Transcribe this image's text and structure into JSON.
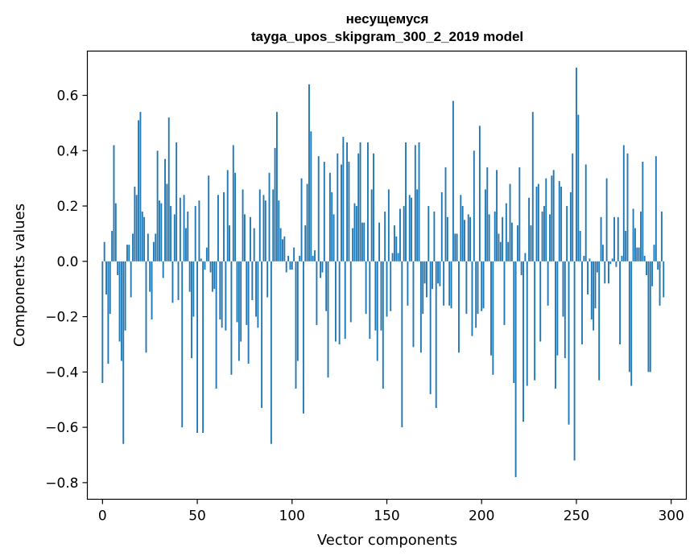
{
  "chart_data": {
    "type": "bar",
    "title": "несущемуся",
    "subtitle": "tayga_upos_skipgram_300_2_2019 model",
    "xlabel": "Vector components",
    "ylabel": "Components values",
    "xlim": [
      -8,
      308
    ],
    "ylim": [
      -0.86,
      0.76
    ],
    "xticks": [
      0,
      50,
      100,
      150,
      200,
      250,
      300
    ],
    "yticks": [
      -0.8,
      -0.6,
      -0.4,
      -0.2,
      0.0,
      0.2,
      0.4,
      0.6
    ],
    "ytick_labels": [
      "−0.8",
      "−0.6",
      "−0.4",
      "−0.2",
      "0.0",
      "0.2",
      "0.4",
      "0.6"
    ],
    "bar_color": "#1f77b4",
    "values": [
      -0.44,
      0.07,
      -0.12,
      -0.37,
      -0.19,
      0.11,
      0.42,
      0.21,
      -0.05,
      -0.29,
      -0.36,
      -0.66,
      -0.25,
      0.06,
      0.06,
      -0.13,
      0.1,
      0.27,
      0.24,
      0.51,
      0.54,
      0.18,
      0.16,
      -0.33,
      0.1,
      -0.11,
      -0.21,
      0.07,
      0.1,
      0.4,
      0.22,
      0.21,
      -0.06,
      0.37,
      0.28,
      0.52,
      0.2,
      -0.15,
      0.17,
      0.43,
      -0.14,
      0.23,
      -0.6,
      0.24,
      0.12,
      0.18,
      -0.11,
      -0.35,
      -0.2,
      0.2,
      -0.62,
      0.22,
      0.01,
      -0.62,
      -0.03,
      0.05,
      0.31,
      -0.04,
      -0.11,
      -0.1,
      -0.46,
      0.24,
      -0.21,
      -0.24,
      0.25,
      -0.25,
      0.33,
      0.13,
      -0.41,
      0.42,
      0.32,
      -0.22,
      -0.36,
      -0.29,
      0.26,
      0.17,
      -0.23,
      -0.37,
      0.16,
      -0.14,
      0.12,
      -0.2,
      -0.24,
      0.26,
      -0.53,
      0.24,
      0.22,
      -0.13,
      0.32,
      -0.66,
      0.26,
      0.41,
      0.54,
      0.22,
      0.12,
      0.08,
      0.09,
      -0.04,
      0.02,
      -0.03,
      -0.03,
      0.05,
      -0.46,
      -0.36,
      0.02,
      0.3,
      -0.55,
      0.13,
      0.28,
      0.64,
      0.47,
      0.02,
      0.04,
      -0.23,
      0.38,
      -0.06,
      -0.04,
      0.36,
      -0.18,
      -0.42,
      0.32,
      0.25,
      0.17,
      -0.29,
      0.39,
      -0.3,
      0.35,
      0.45,
      -0.28,
      0.43,
      0.36,
      -0.22,
      0.12,
      0.21,
      0.2,
      0.39,
      0.43,
      0.14,
      0.14,
      -0.19,
      0.43,
      -0.28,
      0.26,
      0.39,
      -0.25,
      -0.36,
      0.14,
      -0.25,
      -0.46,
      0.18,
      -0.2,
      0.26,
      -0.18,
      0.03,
      0.13,
      0.09,
      0.03,
      0.19,
      -0.6,
      0.2,
      0.43,
      -0.16,
      0.24,
      0.23,
      -0.31,
      0.42,
      0.26,
      0.43,
      -0.33,
      -0.19,
      -0.08,
      -0.13,
      0.2,
      -0.48,
      -0.1,
      0.18,
      -0.53,
      -0.08,
      -0.09,
      0.25,
      -0.16,
      0.34,
      0.16,
      -0.16,
      -0.17,
      0.58,
      0.1,
      0.1,
      -0.33,
      0.24,
      0.2,
      0.15,
      -0.19,
      0.17,
      0.16,
      -0.27,
      0.4,
      -0.24,
      -0.19,
      0.49,
      -0.18,
      -0.17,
      0.26,
      0.34,
      0.17,
      -0.34,
      -0.41,
      0.18,
      0.33,
      0.1,
      0.07,
      0.16,
      -0.23,
      0.21,
      0.07,
      0.28,
      0.14,
      -0.44,
      -0.78,
      0.13,
      0.34,
      -0.05,
      -0.58,
      0.03,
      -0.45,
      0.23,
      0.13,
      0.54,
      -0.43,
      0.27,
      0.28,
      -0.29,
      0.18,
      0.2,
      0.3,
      -0.16,
      0.17,
      0.31,
      0.33,
      -0.46,
      -0.34,
      0.29,
      0.27,
      -0.2,
      -0.35,
      0.2,
      -0.59,
      0.25,
      0.39,
      -0.72,
      0.7,
      0.53,
      0.11,
      -0.3,
      0.02,
      0.35,
      -0.12,
      0.01,
      -0.21,
      -0.25,
      -0.17,
      -0.04,
      -0.43,
      0.16,
      0.06,
      -0.08,
      0.3,
      -0.08,
      -0.01,
      0.01,
      0.16,
      -0.02,
      0.16,
      -0.3,
      0.02,
      0.42,
      0.11,
      0.39,
      -0.4,
      -0.45,
      0.19,
      0.12,
      0.05,
      0.05,
      0.18,
      0.36,
      0.02,
      -0.05,
      -0.4,
      -0.4,
      -0.09,
      0.06,
      0.38,
      -0.03,
      -0.16,
      0.18,
      -0.13
    ]
  }
}
